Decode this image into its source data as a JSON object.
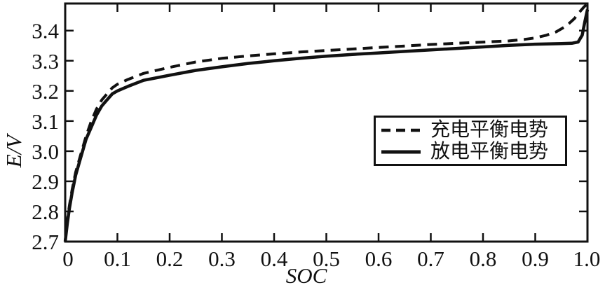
{
  "figure": {
    "background_color": "#ffffff",
    "axis_color": "#111111",
    "curve_color": "#111111"
  },
  "chart_data": {
    "type": "line",
    "title": "",
    "xlabel": "SOC",
    "ylabel": "E/V",
    "xlim": [
      0,
      1.0
    ],
    "ylim": [
      2.7,
      3.49
    ],
    "grid": false,
    "legend_position": "right-middle",
    "x_ticks": [
      0,
      0.1,
      0.2,
      0.3,
      0.4,
      0.5,
      0.6,
      0.7,
      0.8,
      0.9,
      1.0
    ],
    "x_tick_labels": [
      "0",
      "0.1",
      "0.2",
      "0.3",
      "0.4",
      "0.5",
      "0.6",
      "0.7",
      "0.8",
      "0.9",
      "1.0"
    ],
    "y_ticks": [
      2.7,
      2.8,
      2.9,
      3.0,
      3.1,
      3.2,
      3.3,
      3.4
    ],
    "y_tick_labels": [
      "2.7",
      "2.8",
      "2.9",
      "3.0",
      "3.1",
      "3.2",
      "3.3",
      "3.4"
    ],
    "series": [
      {
        "name": "充电平衡电势",
        "style": "dashed",
        "color": "#111111",
        "points": [
          [
            0.0,
            2.7
          ],
          [
            0.004,
            2.77
          ],
          [
            0.008,
            2.82
          ],
          [
            0.013,
            2.87
          ],
          [
            0.02,
            2.93
          ],
          [
            0.03,
            2.99
          ],
          [
            0.04,
            3.05
          ],
          [
            0.05,
            3.1
          ],
          [
            0.06,
            3.14
          ],
          [
            0.07,
            3.17
          ],
          [
            0.08,
            3.19
          ],
          [
            0.09,
            3.21
          ],
          [
            0.1,
            3.222
          ],
          [
            0.12,
            3.238
          ],
          [
            0.15,
            3.258
          ],
          [
            0.2,
            3.278
          ],
          [
            0.25,
            3.296
          ],
          [
            0.3,
            3.308
          ],
          [
            0.35,
            3.316
          ],
          [
            0.4,
            3.323
          ],
          [
            0.45,
            3.329
          ],
          [
            0.5,
            3.334
          ],
          [
            0.55,
            3.339
          ],
          [
            0.6,
            3.344
          ],
          [
            0.65,
            3.349
          ],
          [
            0.7,
            3.354
          ],
          [
            0.75,
            3.358
          ],
          [
            0.8,
            3.362
          ],
          [
            0.85,
            3.366
          ],
          [
            0.88,
            3.371
          ],
          [
            0.9,
            3.376
          ],
          [
            0.92,
            3.384
          ],
          [
            0.94,
            3.396
          ],
          [
            0.96,
            3.416
          ],
          [
            0.975,
            3.44
          ],
          [
            0.985,
            3.462
          ],
          [
            0.993,
            3.478
          ],
          [
            1.0,
            3.49
          ]
        ]
      },
      {
        "name": "放电平衡电势",
        "style": "solid",
        "color": "#111111",
        "points": [
          [
            0.0,
            2.7
          ],
          [
            0.004,
            2.76
          ],
          [
            0.008,
            2.81
          ],
          [
            0.013,
            2.86
          ],
          [
            0.02,
            2.92
          ],
          [
            0.03,
            2.98
          ],
          [
            0.04,
            3.04
          ],
          [
            0.05,
            3.08
          ],
          [
            0.06,
            3.12
          ],
          [
            0.07,
            3.15
          ],
          [
            0.08,
            3.17
          ],
          [
            0.09,
            3.19
          ],
          [
            0.1,
            3.2
          ],
          [
            0.12,
            3.215
          ],
          [
            0.15,
            3.235
          ],
          [
            0.2,
            3.252
          ],
          [
            0.25,
            3.268
          ],
          [
            0.3,
            3.28
          ],
          [
            0.35,
            3.291
          ],
          [
            0.4,
            3.3
          ],
          [
            0.45,
            3.308
          ],
          [
            0.5,
            3.315
          ],
          [
            0.55,
            3.321
          ],
          [
            0.6,
            3.326
          ],
          [
            0.65,
            3.331
          ],
          [
            0.7,
            3.336
          ],
          [
            0.75,
            3.341
          ],
          [
            0.8,
            3.346
          ],
          [
            0.85,
            3.351
          ],
          [
            0.9,
            3.355
          ],
          [
            0.95,
            3.357
          ],
          [
            0.97,
            3.358
          ],
          [
            0.982,
            3.362
          ],
          [
            0.99,
            3.385
          ],
          [
            0.995,
            3.43
          ],
          [
            1.0,
            3.47
          ]
        ]
      }
    ]
  },
  "legend": {
    "items": [
      {
        "label": "充电平衡电势",
        "line_style": "dashed"
      },
      {
        "label": "放电平衡电势",
        "line_style": "solid"
      }
    ]
  }
}
